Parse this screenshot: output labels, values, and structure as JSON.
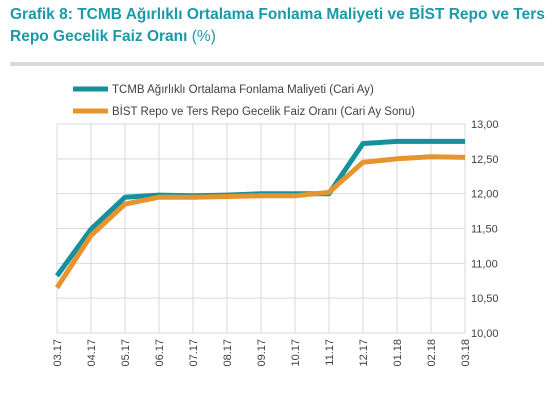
{
  "header": {
    "title": "Grafik 8:  TCMB Ağırlıklı Ortalama Fonlama Maliyeti  ve BİST Repo ve Ters Repo Gecelik Faiz Oranı",
    "unit": "(%)"
  },
  "colors": {
    "teal": "#16909c",
    "orange": "#e6942e",
    "grid": "#d9d9d9",
    "title": "#1a9aa8"
  },
  "chart_data": {
    "type": "line",
    "x": [
      "03.17",
      "04.17",
      "05.17",
      "06.17",
      "07.17",
      "08.17",
      "09.17",
      "10.17",
      "11.17",
      "12.17",
      "01.18",
      "02.18",
      "03.18"
    ],
    "series": [
      {
        "name": "TCMB Ağırlıklı Ortalama Fonlama Maliyeti (Cari Ay)",
        "color": "#16909c",
        "values": [
          10.82,
          11.49,
          11.95,
          11.98,
          11.97,
          11.98,
          12.0,
          12.0,
          12.0,
          12.72,
          12.75,
          12.75,
          12.75
        ]
      },
      {
        "name": "BİST Repo ve Ters Repo Gecelik Faiz Oranı (Cari Ay Sonu)",
        "color": "#e6942e",
        "values": [
          10.65,
          11.4,
          11.85,
          11.95,
          11.95,
          11.96,
          11.97,
          11.97,
          12.02,
          12.45,
          12.5,
          12.53,
          12.52
        ]
      }
    ],
    "yticks": [
      "13,00",
      "12,50",
      "12,00",
      "11,50",
      "11,00",
      "10,50",
      "10,00"
    ],
    "ylim": [
      10.0,
      13.0
    ],
    "grid": true,
    "legend_position": "top"
  }
}
